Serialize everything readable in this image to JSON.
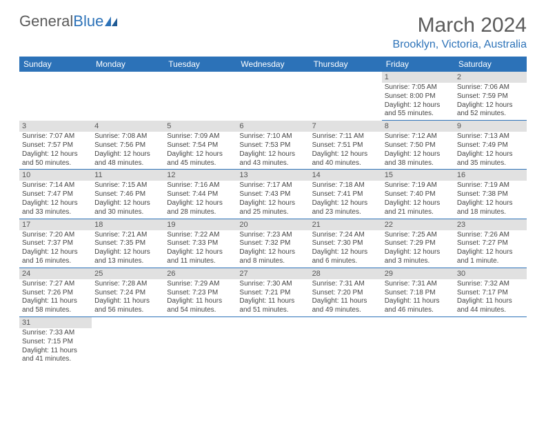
{
  "brand": {
    "text1": "General",
    "text2": "Blue",
    "color_gray": "#5a5a5a",
    "color_blue": "#2c72b8"
  },
  "title": "March 2024",
  "location": "Brooklyn, Victoria, Australia",
  "header_bg": "#2c72b8",
  "header_fg": "#ffffff",
  "daynum_bg": "#e1e1e1",
  "border_color": "#2c72b8",
  "body_text_color": "#444444",
  "days_of_week": [
    "Sunday",
    "Monday",
    "Tuesday",
    "Wednesday",
    "Thursday",
    "Friday",
    "Saturday"
  ],
  "first_weekday_index": 5,
  "days_in_month": 31,
  "days": {
    "1": {
      "sunrise": "7:05 AM",
      "sunset": "8:00 PM",
      "daylight": "12 hours and 55 minutes."
    },
    "2": {
      "sunrise": "7:06 AM",
      "sunset": "7:59 PM",
      "daylight": "12 hours and 52 minutes."
    },
    "3": {
      "sunrise": "7:07 AM",
      "sunset": "7:57 PM",
      "daylight": "12 hours and 50 minutes."
    },
    "4": {
      "sunrise": "7:08 AM",
      "sunset": "7:56 PM",
      "daylight": "12 hours and 48 minutes."
    },
    "5": {
      "sunrise": "7:09 AM",
      "sunset": "7:54 PM",
      "daylight": "12 hours and 45 minutes."
    },
    "6": {
      "sunrise": "7:10 AM",
      "sunset": "7:53 PM",
      "daylight": "12 hours and 43 minutes."
    },
    "7": {
      "sunrise": "7:11 AM",
      "sunset": "7:51 PM",
      "daylight": "12 hours and 40 minutes."
    },
    "8": {
      "sunrise": "7:12 AM",
      "sunset": "7:50 PM",
      "daylight": "12 hours and 38 minutes."
    },
    "9": {
      "sunrise": "7:13 AM",
      "sunset": "7:49 PM",
      "daylight": "12 hours and 35 minutes."
    },
    "10": {
      "sunrise": "7:14 AM",
      "sunset": "7:47 PM",
      "daylight": "12 hours and 33 minutes."
    },
    "11": {
      "sunrise": "7:15 AM",
      "sunset": "7:46 PM",
      "daylight": "12 hours and 30 minutes."
    },
    "12": {
      "sunrise": "7:16 AM",
      "sunset": "7:44 PM",
      "daylight": "12 hours and 28 minutes."
    },
    "13": {
      "sunrise": "7:17 AM",
      "sunset": "7:43 PM",
      "daylight": "12 hours and 25 minutes."
    },
    "14": {
      "sunrise": "7:18 AM",
      "sunset": "7:41 PM",
      "daylight": "12 hours and 23 minutes."
    },
    "15": {
      "sunrise": "7:19 AM",
      "sunset": "7:40 PM",
      "daylight": "12 hours and 21 minutes."
    },
    "16": {
      "sunrise": "7:19 AM",
      "sunset": "7:38 PM",
      "daylight": "12 hours and 18 minutes."
    },
    "17": {
      "sunrise": "7:20 AM",
      "sunset": "7:37 PM",
      "daylight": "12 hours and 16 minutes."
    },
    "18": {
      "sunrise": "7:21 AM",
      "sunset": "7:35 PM",
      "daylight": "12 hours and 13 minutes."
    },
    "19": {
      "sunrise": "7:22 AM",
      "sunset": "7:33 PM",
      "daylight": "12 hours and 11 minutes."
    },
    "20": {
      "sunrise": "7:23 AM",
      "sunset": "7:32 PM",
      "daylight": "12 hours and 8 minutes."
    },
    "21": {
      "sunrise": "7:24 AM",
      "sunset": "7:30 PM",
      "daylight": "12 hours and 6 minutes."
    },
    "22": {
      "sunrise": "7:25 AM",
      "sunset": "7:29 PM",
      "daylight": "12 hours and 3 minutes."
    },
    "23": {
      "sunrise": "7:26 AM",
      "sunset": "7:27 PM",
      "daylight": "12 hours and 1 minute."
    },
    "24": {
      "sunrise": "7:27 AM",
      "sunset": "7:26 PM",
      "daylight": "11 hours and 58 minutes."
    },
    "25": {
      "sunrise": "7:28 AM",
      "sunset": "7:24 PM",
      "daylight": "11 hours and 56 minutes."
    },
    "26": {
      "sunrise": "7:29 AM",
      "sunset": "7:23 PM",
      "daylight": "11 hours and 54 minutes."
    },
    "27": {
      "sunrise": "7:30 AM",
      "sunset": "7:21 PM",
      "daylight": "11 hours and 51 minutes."
    },
    "28": {
      "sunrise": "7:31 AM",
      "sunset": "7:20 PM",
      "daylight": "11 hours and 49 minutes."
    },
    "29": {
      "sunrise": "7:31 AM",
      "sunset": "7:18 PM",
      "daylight": "11 hours and 46 minutes."
    },
    "30": {
      "sunrise": "7:32 AM",
      "sunset": "7:17 PM",
      "daylight": "11 hours and 44 minutes."
    },
    "31": {
      "sunrise": "7:33 AM",
      "sunset": "7:15 PM",
      "daylight": "11 hours and 41 minutes."
    }
  },
  "labels": {
    "sunrise": "Sunrise: ",
    "sunset": "Sunset: ",
    "daylight": "Daylight: "
  }
}
